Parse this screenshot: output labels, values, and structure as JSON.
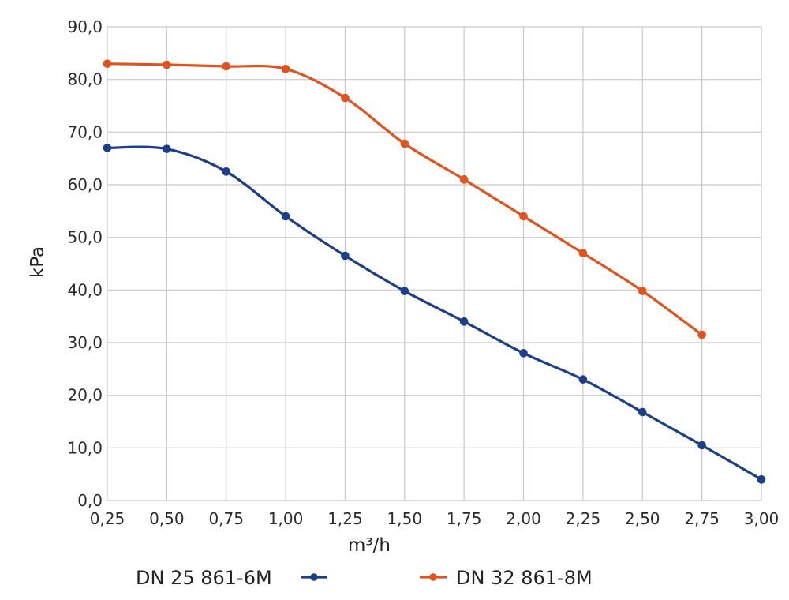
{
  "chart_data": {
    "type": "line",
    "title": "",
    "xlabel": "m³/h",
    "ylabel": "kPa",
    "x_tick_labels": [
      "0,25",
      "0,50",
      "0,75",
      "1,00",
      "1,25",
      "1,50",
      "1,75",
      "2,00",
      "2,25",
      "2,50",
      "2,75",
      "3,00"
    ],
    "y_tick_labels": [
      "0,0",
      "10,0",
      "20,0",
      "30,0",
      "40,0",
      "50,0",
      "60,0",
      "70,0",
      "80,0",
      "90,0"
    ],
    "xlim": [
      0.25,
      3.0
    ],
    "ylim": [
      0,
      90
    ],
    "grid": true,
    "legend_position": "bottom",
    "series": [
      {
        "name": "DN 25  861-6M",
        "color": "#1c3f87",
        "x": [
          0.25,
          0.5,
          0.75,
          1.0,
          1.25,
          1.5,
          1.75,
          2.0,
          2.25,
          2.5,
          2.75,
          3.0
        ],
        "y": [
          67.0,
          66.8,
          62.5,
          54.0,
          46.5,
          39.8,
          34.0,
          28.0,
          23.0,
          16.8,
          10.5,
          4.0
        ]
      },
      {
        "name": "DN 32  861-8M",
        "color": "#e2521e",
        "x": [
          0.25,
          0.5,
          0.75,
          1.0,
          1.25,
          1.5,
          1.75,
          2.0,
          2.25,
          2.5,
          2.75
        ],
        "y": [
          83.0,
          82.8,
          82.5,
          82.0,
          76.5,
          67.8,
          61.0,
          54.0,
          47.0,
          39.8,
          31.5
        ]
      }
    ]
  }
}
